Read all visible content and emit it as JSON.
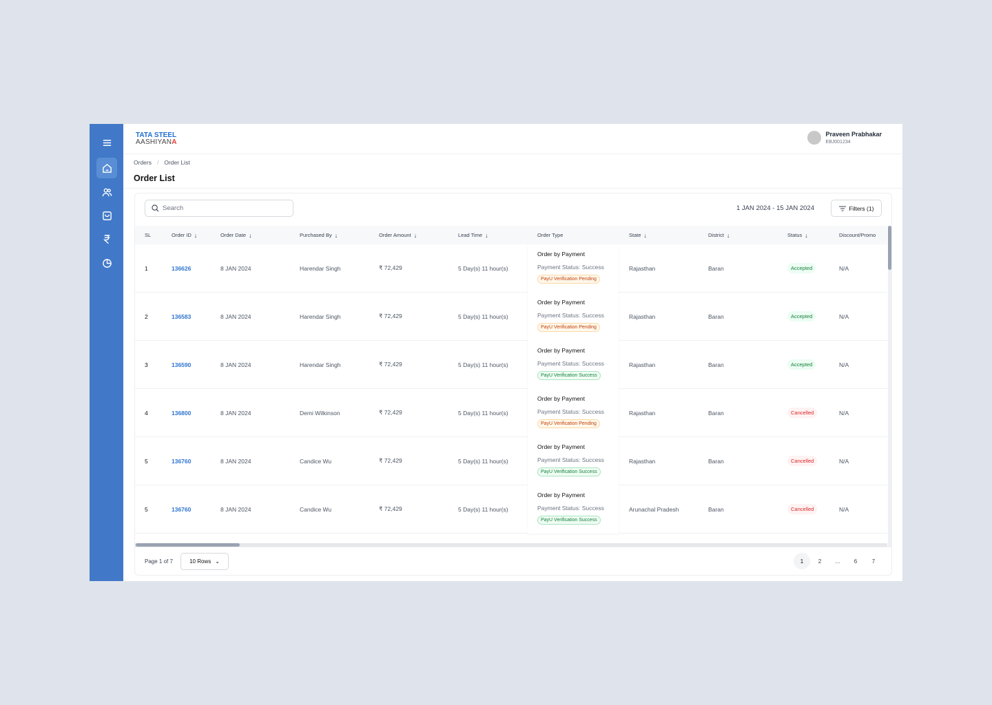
{
  "brand": {
    "line1": "TATA STEEL",
    "line2": "AASHIYAN",
    "line2_accent": "A"
  },
  "user": {
    "name": "Praveen Prabhakar",
    "id": "EBJ001234"
  },
  "sidebar": {
    "items": [
      {
        "icon": "home-icon",
        "active": true
      },
      {
        "icon": "users-icon"
      },
      {
        "icon": "shopping-bag-icon"
      },
      {
        "icon": "rupee-icon"
      },
      {
        "icon": "pie-chart-icon"
      }
    ]
  },
  "breadcrumb": {
    "root": "Orders",
    "separator": "/",
    "current": "Order List"
  },
  "page_title": "Order List",
  "toolbar": {
    "search_placeholder": "Search",
    "date_range": "1 JAN 2024 - 15 JAN 2024",
    "filters_label": "Filters (1)"
  },
  "table": {
    "columns": [
      {
        "label": "SL",
        "sort": false
      },
      {
        "label": "Order ID",
        "sort": true
      },
      {
        "label": "Order Date",
        "sort": true
      },
      {
        "label": "Purchased By",
        "sort": true
      },
      {
        "label": "Order Amount",
        "sort": true
      },
      {
        "label": "Lead Time",
        "sort": true
      },
      {
        "label": "Order Type",
        "sort": false
      },
      {
        "label": "State",
        "sort": true
      },
      {
        "label": "District",
        "sort": true
      },
      {
        "label": "Status",
        "sort": true
      },
      {
        "label": "Discount/Promo",
        "sort": false
      }
    ],
    "rows": [
      {
        "sl": "1",
        "order_id": "136626",
        "date": "8 JAN 2024",
        "purchased_by": "Harendar Singh",
        "amount": "₹ 72,429",
        "lead_time": "5 Day(s) 11 hour(s)",
        "order_type": "Order by Payment",
        "payment_status": "Payment Status: Success",
        "verification": "PayU Verification Pending",
        "verification_kind": "pending",
        "state": "Rajasthan",
        "district": "Baran",
        "status": "Accepted",
        "discount": "N/A"
      },
      {
        "sl": "2",
        "order_id": "136583",
        "date": "8 JAN 2024",
        "purchased_by": "Harendar Singh",
        "amount": "₹ 72,429",
        "lead_time": "5 Day(s) 11 hour(s)",
        "order_type": "Order by Payment",
        "payment_status": "Payment Status: Success",
        "verification": "PayU Verification Pending",
        "verification_kind": "pending",
        "state": "Rajasthan",
        "district": "Baran",
        "status": "Accepted",
        "discount": "N/A"
      },
      {
        "sl": "3",
        "order_id": "136590",
        "date": "8 JAN 2024",
        "purchased_by": "Harendar Singh",
        "amount": "₹ 72,429",
        "lead_time": "5 Day(s) 11 hour(s)",
        "order_type": "Order by Payment",
        "payment_status": "Payment Status: Success",
        "verification": "PayU Verification Success",
        "verification_kind": "success",
        "state": "Rajasthan",
        "district": "Baran",
        "status": "Accepted",
        "discount": "N/A"
      },
      {
        "sl": "4",
        "order_id": "136800",
        "date": "8 JAN 2024",
        "purchased_by": "Demi Wilkinson",
        "amount": "₹ 72,429",
        "lead_time": "5 Day(s) 11 hour(s)",
        "order_type": "Order by Payment",
        "payment_status": "Payment Status: Success",
        "verification": "PayU Verification Pending",
        "verification_kind": "pending",
        "state": "Rajasthan",
        "district": "Baran",
        "status": "Cancelled",
        "discount": "N/A"
      },
      {
        "sl": "5",
        "order_id": "136760",
        "date": "8 JAN 2024",
        "purchased_by": "Candice Wu",
        "amount": "₹ 72,429",
        "lead_time": "5 Day(s) 11 hour(s)",
        "order_type": "Order by Payment",
        "payment_status": "Payment Status: Success",
        "verification": "PayU Verification Success",
        "verification_kind": "success",
        "state": "Rajasthan",
        "district": "Baran",
        "status": "Cancelled",
        "discount": "N/A"
      },
      {
        "sl": "5",
        "order_id": "136760",
        "date": "8 JAN 2024",
        "purchased_by": "Candice Wu",
        "amount": "₹ 72,429",
        "lead_time": "5 Day(s) 11 hour(s)",
        "order_type": "Order by Payment",
        "payment_status": "Payment Status: Success",
        "verification": "PayU Verification Success",
        "verification_kind": "success",
        "state": "Arunachal Pradesh",
        "district": "Baran",
        "status": "Cancelled",
        "discount": "N/A"
      }
    ]
  },
  "pagination": {
    "page_info": "Page 1 of 7",
    "rows_per_page": "10 Rows",
    "pages": [
      "1",
      "2",
      "...",
      "6",
      "7"
    ],
    "current": "1"
  }
}
